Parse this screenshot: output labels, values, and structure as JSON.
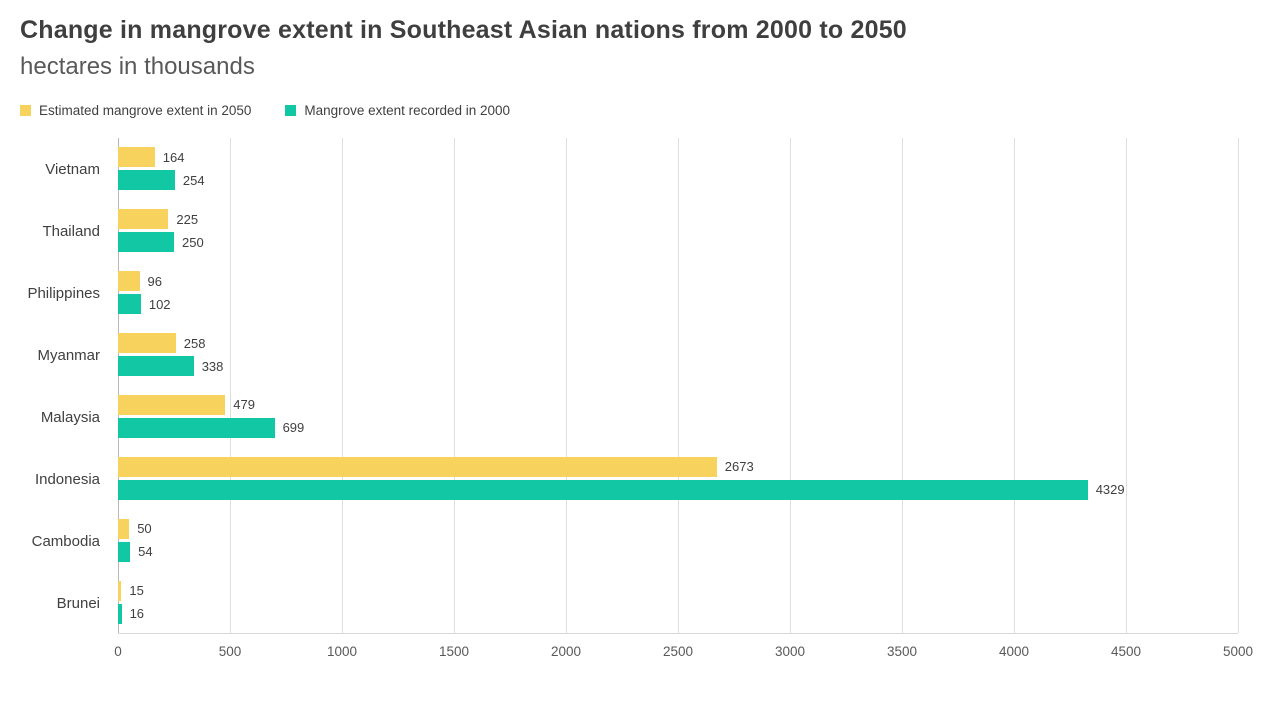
{
  "header": {
    "title": "Change in mangrove extent in Southeast Asian nations from 2000 to 2050",
    "subtitle": "hectares in thousands"
  },
  "legend": [
    {
      "label": "Estimated mangrove extent in 2050",
      "color": "#f7d35e"
    },
    {
      "label": "Mangrove extent recorded in 2000",
      "color": "#12c7a4"
    }
  ],
  "chart_data": {
    "type": "bar",
    "orientation": "horizontal",
    "title": "Change in mangrove extent in Southeast Asian nations from 2000 to 2050",
    "subtitle": "hectares in thousands",
    "xlabel": "",
    "ylabel": "",
    "categories": [
      "Vietnam",
      "Thailand",
      "Philippines",
      "Myanmar",
      "Malaysia",
      "Indonesia",
      "Cambodia",
      "Brunei"
    ],
    "series": [
      {
        "name": "Estimated mangrove extent in 2050",
        "color": "#f7d35e",
        "values": [
          164,
          225,
          96,
          258,
          479,
          2673,
          50,
          15
        ]
      },
      {
        "name": "Mangrove extent recorded in 2000",
        "color": "#12c7a4",
        "values": [
          254,
          250,
          102,
          338,
          699,
          4329,
          54,
          16
        ]
      }
    ],
    "xlim": [
      0,
      5000
    ],
    "xticks": [
      0,
      500,
      1000,
      1500,
      2000,
      2500,
      3000,
      3500,
      4000,
      4500,
      5000
    ],
    "grid": true,
    "legend_position": "top-left"
  }
}
